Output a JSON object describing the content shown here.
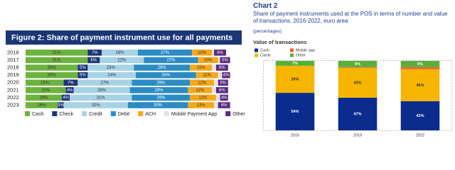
{
  "chart_data": [
    {
      "type": "hbar_stacked",
      "title": "Figure 2: Share of payment instrument use for all payments",
      "categories": [
        "2016",
        "2017",
        "2018",
        "2019",
        "2020",
        "2021",
        "2022",
        "2023"
      ],
      "xlim": [
        0,
        100
      ],
      "series": [
        {
          "name": "Cash",
          "color": "#6db33f",
          "values": [
            31,
            31,
            26,
            26,
            19,
            20,
            18,
            16
          ],
          "value_labels": [
            "31%",
            "31%",
            "26%",
            "26%",
            "19%",
            "20%",
            "18%",
            "16%"
          ]
        },
        {
          "name": "Check",
          "color": "#1b3575",
          "values": [
            7,
            6,
            5,
            5,
            7,
            4,
            4,
            3
          ],
          "value_labels": [
            "7%",
            "6%",
            "5%",
            "5%",
            "7%",
            "4%",
            "4%",
            "3%"
          ]
        },
        {
          "name": "Credit",
          "color": "#a8d3e6",
          "values": [
            18,
            22,
            23,
            24,
            27,
            28,
            31,
            32
          ],
          "value_labels": [
            "18%",
            "22%",
            "23%",
            "24%",
            "27%",
            "28%",
            "31%",
            "32%"
          ]
        },
        {
          "name": "Debit",
          "color": "#2b8cc4",
          "values": [
            27,
            27,
            28,
            30,
            29,
            29,
            29,
            30
          ],
          "value_labels": [
            "27%",
            "27%",
            "28%",
            "30%",
            "29%",
            "29%",
            "29%",
            "30%"
          ]
        },
        {
          "name": "ACH",
          "color": "#f6a81c",
          "values": [
            10,
            10,
            11,
            11,
            12,
            12,
            13,
            13
          ],
          "value_labels": [
            "10%",
            "10%",
            "11%",
            "11%",
            "12%",
            "12%",
            "13%",
            "13%"
          ]
        },
        {
          "name": "Mobile Payment App",
          "color": "#e4e4e4",
          "values": [
            1,
            1,
            2,
            2,
            2,
            2,
            2,
            2
          ],
          "value_labels": [
            null,
            null,
            null,
            null,
            null,
            null,
            null,
            null
          ]
        },
        {
          "name": "Other",
          "color": "#5a2a82",
          "values": [
            6,
            5,
            6,
            4,
            5,
            6,
            4,
            6
          ],
          "value_labels": [
            "6%",
            "5%",
            "6%",
            "4%",
            "5%",
            "6%",
            "4%",
            "6%"
          ]
        }
      ]
    },
    {
      "type": "bar_stacked",
      "title": "Chart 2",
      "subtitle": "Share of payment instruments used at the POS in terms of number and value of transactions, 2016-2022, euro area",
      "unit_note": "(percentages)",
      "panel_title": "Value of transactions",
      "categories": [
        "2016",
        "2019",
        "2022"
      ],
      "ylim": [
        0,
        100
      ],
      "series": [
        {
          "name": "Cash",
          "color": "#0b2c8c",
          "values": [
            54,
            47,
            42
          ],
          "value_labels": [
            "54%",
            "47%",
            "42%"
          ]
        },
        {
          "name": "Cards",
          "color": "#f7b500",
          "values": [
            39,
            43,
            46
          ],
          "value_labels": [
            "39%",
            "43%",
            "46%"
          ]
        },
        {
          "name": "Mobile app",
          "color": "#f0622a",
          "values": [
            0,
            1,
            3
          ],
          "value_labels": [
            null,
            null,
            null
          ]
        },
        {
          "name": "Other",
          "color": "#5cae3a",
          "values": [
            7,
            9,
            9
          ],
          "value_labels": [
            "7%",
            "9%",
            "9%"
          ]
        }
      ]
    }
  ]
}
